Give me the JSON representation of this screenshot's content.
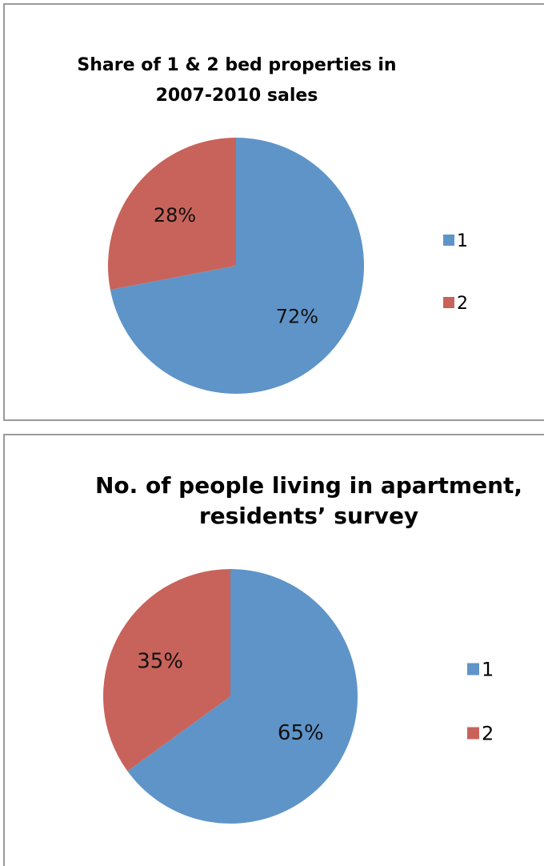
{
  "colors": {
    "series_1": "#5f94c8",
    "series_2": "#c8635b"
  },
  "chart_data": [
    {
      "type": "pie",
      "title_lines": [
        "Share of 1 & 2 bed properties in",
        "2007-2010 sales"
      ],
      "categories": [
        "1",
        "2"
      ],
      "values": [
        72,
        28
      ],
      "value_labels": [
        "72%",
        "28%"
      ],
      "legend_position": "right"
    },
    {
      "type": "pie",
      "title_lines": [
        "No. of people living in apartment,",
        "residents’ survey"
      ],
      "categories": [
        "1",
        "2"
      ],
      "values": [
        65,
        35
      ],
      "value_labels": [
        "65%",
        "35%"
      ],
      "legend_position": "right"
    }
  ]
}
